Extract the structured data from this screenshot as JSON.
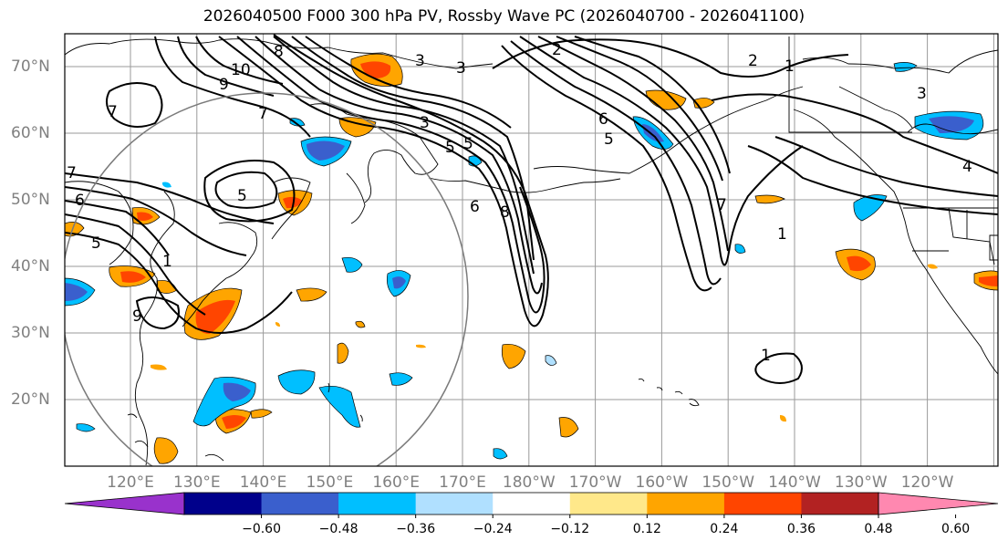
{
  "title": "2026040500 F000 300 hPa PV, Rossby Wave PC (2026040700 - 2026041100)",
  "lat_labels": [
    "70°N",
    "60°N",
    "50°N",
    "40°N",
    "30°N",
    "20°N"
  ],
  "lon_labels": [
    "120°E",
    "130°E",
    "140°E",
    "150°E",
    "160°E",
    "170°E",
    "180°W",
    "170°W",
    "160°W",
    "150°W",
    "140°W",
    "130°W",
    "120°W"
  ],
  "colorbar": {
    "colors": [
      "#9932cc",
      "#00008b",
      "#3a5fcd",
      "#00bfff",
      "#b0e0ff",
      "#ffffff",
      "#ffe88a",
      "#ffa500",
      "#ff4500",
      "#b22222",
      "#ff88b0"
    ],
    "tick_labels": [
      "−0.60",
      "−0.48",
      "−0.36",
      "−0.24",
      "−0.12",
      "0.12",
      "0.24",
      "0.36",
      "0.48",
      "0.60"
    ]
  },
  "contour_labels": [
    "10",
    "9",
    "8",
    "7",
    "7",
    "6",
    "5",
    "5",
    "5",
    "5",
    "3",
    "3",
    "9",
    "7",
    "6",
    "5",
    "4",
    "3",
    "2",
    "1",
    "1",
    "1",
    "1",
    "2",
    "8",
    "7",
    "6",
    "3"
  ]
}
